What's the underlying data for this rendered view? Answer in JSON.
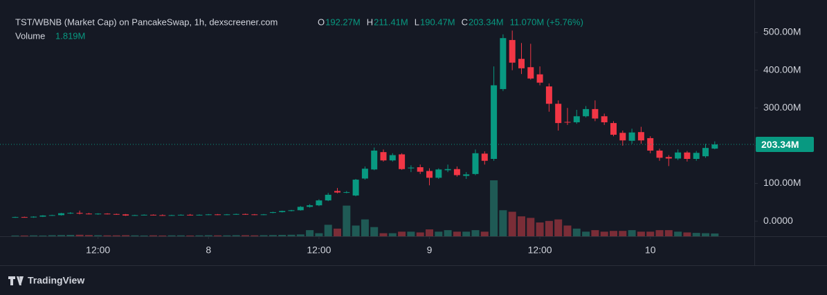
{
  "chart_data": {
    "type": "candlestick",
    "title": "TST/WBNB (Market Cap) on PancakeSwap, 1h, dexscreener.com",
    "ohlc_legend": [
      {
        "label": "O",
        "value": "192.27M"
      },
      {
        "label": "H",
        "value": "211.41M"
      },
      {
        "label": "L",
        "value": "190.47M"
      },
      {
        "label": "C",
        "value": "203.34M"
      }
    ],
    "change": "11.070M (+5.76%)",
    "volume_label": "Volume",
    "volume_value": "1.819M",
    "last_price": {
      "value": 203.34,
      "label": "203.34M"
    },
    "brand": "TradingView",
    "up_color": "#089981",
    "down_color": "#f23645",
    "up_volume_color": "#1f5a55",
    "down_volume_color": "#7a2d37",
    "categories": [
      null,
      null,
      null,
      null,
      null,
      null,
      null,
      null,
      null,
      "12:00",
      null,
      null,
      null,
      null,
      null,
      null,
      null,
      null,
      null,
      null,
      null,
      "8",
      null,
      null,
      null,
      null,
      null,
      null,
      null,
      null,
      null,
      null,
      null,
      "12:00",
      null,
      null,
      null,
      null,
      null,
      null,
      null,
      null,
      null,
      null,
      null,
      "9",
      null,
      null,
      null,
      null,
      null,
      null,
      null,
      null,
      null,
      null,
      null,
      "12:00",
      null,
      null,
      null,
      null,
      null,
      null,
      null,
      null,
      null,
      null,
      null,
      "10",
      null,
      null,
      null,
      null,
      null,
      null,
      null
    ],
    "open": [
      10,
      11,
      10,
      12,
      15,
      16,
      21,
      22,
      20,
      19,
      20,
      19,
      18,
      15,
      16,
      17,
      16,
      15,
      16,
      17,
      16,
      17,
      18,
      17,
      18,
      19,
      18,
      17,
      22,
      24,
      27,
      29,
      38,
      42,
      55,
      80,
      76,
      68,
      113,
      137,
      183,
      161,
      177,
      140,
      143,
      133,
      115,
      135,
      138,
      120,
      125,
      179,
      165,
      350,
      480,
      430,
      408,
      389,
      357,
      311,
      263,
      262,
      278,
      297,
      278,
      260,
      234,
      213,
      236,
      220,
      187,
      170,
      166,
      182,
      165,
      172,
      192.27
    ],
    "high": [
      12,
      12,
      13,
      16,
      17,
      22,
      24,
      28,
      22,
      21,
      21,
      20,
      19,
      17,
      18,
      18,
      18,
      17,
      18,
      19,
      18,
      19,
      19,
      19,
      20,
      20,
      19,
      19,
      25,
      28,
      30,
      40,
      45,
      58,
      75,
      88,
      80,
      112,
      145,
      195,
      190,
      180,
      180,
      148,
      150,
      140,
      140,
      150,
      145,
      130,
      190,
      185,
      410,
      495,
      505,
      472,
      470,
      410,
      365,
      320,
      300,
      295,
      305,
      320,
      285,
      265,
      240,
      245,
      250,
      225,
      192,
      175,
      190,
      186,
      186,
      205,
      211.41
    ],
    "low": [
      9,
      10,
      9,
      11,
      14,
      15,
      19,
      18,
      18,
      17,
      18,
      17,
      14,
      14,
      15,
      15,
      14,
      14,
      15,
      15,
      15,
      16,
      16,
      16,
      17,
      17,
      16,
      16,
      21,
      23,
      26,
      28,
      36,
      40,
      53,
      74,
      74,
      66,
      110,
      135,
      158,
      158,
      136,
      130,
      125,
      95,
      112,
      130,
      118,
      112,
      122,
      150,
      160,
      345,
      400,
      390,
      375,
      360,
      290,
      240,
      255,
      258,
      275,
      265,
      255,
      225,
      200,
      205,
      205,
      180,
      160,
      146,
      162,
      158,
      160,
      168,
      190.47
    ],
    "close": [
      11,
      10,
      12,
      15,
      16,
      21,
      22,
      20,
      19,
      20,
      19,
      18,
      15,
      16,
      17,
      16,
      15,
      16,
      17,
      16,
      17,
      18,
      17,
      18,
      19,
      18,
      17,
      18,
      24,
      27,
      29,
      38,
      42,
      55,
      70,
      76,
      77,
      110,
      139,
      187,
      161,
      175,
      138,
      142,
      131,
      115,
      137,
      138,
      122,
      124,
      180,
      160,
      360,
      485,
      420,
      405,
      378,
      367,
      311,
      260,
      262,
      278,
      297,
      272,
      262,
      229,
      214,
      235,
      214,
      187,
      168,
      166,
      182,
      165,
      181,
      194,
      203.34
    ],
    "volume": [
      0.5,
      0.5,
      0.6,
      0.5,
      0.7,
      0.8,
      0.9,
      1,
      0.8,
      0.7,
      0.6,
      0.6,
      0.7,
      0.6,
      0.5,
      0.6,
      0.5,
      0.6,
      0.6,
      0.5,
      0.6,
      0.7,
      0.6,
      0.6,
      0.7,
      0.7,
      0.6,
      0.7,
      0.8,
      0.9,
      1,
      1.2,
      4,
      2,
      7.5,
      5,
      20,
      7,
      11,
      6,
      2,
      2,
      3,
      3,
      2.5,
      4.5,
      3,
      4,
      3,
      3,
      4,
      3,
      36.5,
      17,
      16,
      13,
      12,
      9,
      10,
      11,
      7,
      5,
      3,
      4,
      3,
      3.5,
      3.5,
      4,
      3,
      3,
      4,
      4,
      3,
      2.5,
      2.2,
      2,
      1.819
    ],
    "ylim": [
      -40,
      586
    ],
    "yticks": [
      {
        "value": 0,
        "label": "0.0000"
      },
      {
        "value": 100,
        "label": "100.00M"
      },
      {
        "value": 200,
        "label": null
      },
      {
        "value": 300,
        "label": "300.00M"
      },
      {
        "value": 400,
        "label": "400.00M"
      },
      {
        "value": 500,
        "label": "500.00M"
      }
    ]
  }
}
